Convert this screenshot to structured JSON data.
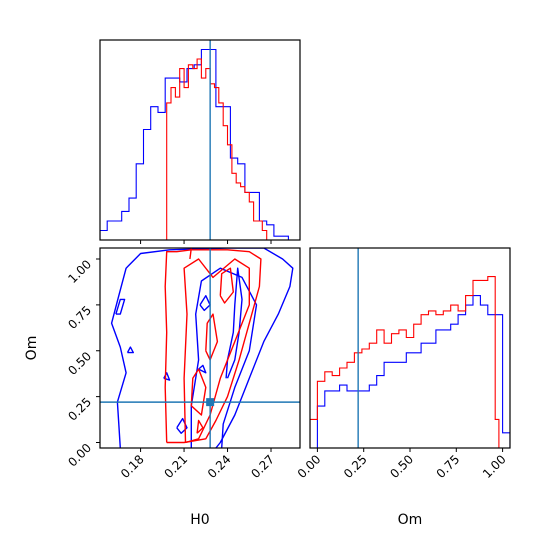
{
  "chart_data": {
    "type": "corner",
    "parameters": [
      "H0",
      "Om"
    ],
    "truth": {
      "H0": 0.228,
      "Om": 0.22
    },
    "colors": {
      "blue": "#0000ff",
      "red": "#ff0000",
      "truth": "#1f77b4"
    },
    "panels": [
      {
        "id": "hist-H0",
        "type": "histogram",
        "xlim": [
          0.152,
          0.29
        ],
        "ylim": [
          0,
          1.05
        ],
        "xticks": [
          0.18,
          0.21,
          0.24,
          0.27
        ],
        "tick_labels_shown": false,
        "series": [
          {
            "color": "blue",
            "edges": [
              0.152,
              0.157,
              0.162,
              0.167,
              0.172,
              0.177,
              0.182,
              0.187,
              0.192,
              0.197,
              0.202,
              0.207,
              0.212,
              0.217,
              0.222,
              0.227,
              0.232,
              0.237,
              0.242,
              0.247,
              0.252,
              0.257,
              0.262,
              0.267,
              0.272,
              0.277,
              0.282,
              0.287
            ],
            "values": [
              0.05,
              0.1,
              0.1,
              0.15,
              0.22,
              0.4,
              0.58,
              0.7,
              0.67,
              0.85,
              0.85,
              0.83,
              0.9,
              0.92,
              1.0,
              1.0,
              0.7,
              0.7,
              0.43,
              0.4,
              0.25,
              0.25,
              0.1,
              0.08,
              0.02,
              0.02,
              0.0
            ]
          },
          {
            "color": "red",
            "edges": [
              0.198,
              0.201,
              0.204,
              0.207,
              0.21,
              0.213,
              0.216,
              0.219,
              0.222,
              0.225,
              0.228,
              0.231,
              0.234,
              0.237,
              0.24,
              0.243,
              0.246,
              0.249,
              0.252,
              0.255,
              0.258,
              0.261,
              0.264,
              0.267
            ],
            "values": [
              0.72,
              0.8,
              0.75,
              0.9,
              0.8,
              0.92,
              0.9,
              0.95,
              0.85,
              0.9,
              0.82,
              0.8,
              0.72,
              0.6,
              0.5,
              0.35,
              0.3,
              0.28,
              0.25,
              0.2,
              0.1,
              0.1,
              0.05
            ]
          }
        ]
      },
      {
        "id": "contour-H0-Om",
        "type": "contour",
        "xlim": [
          0.152,
          0.29
        ],
        "ylim": [
          -0.03,
          1.06
        ],
        "xticks": [
          0.18,
          0.21,
          0.24,
          0.27
        ],
        "xtick_labels": [
          "0.18",
          "0.21",
          "0.24",
          "0.27"
        ],
        "yticks": [
          0.0,
          0.25,
          0.5,
          0.75,
          1.0
        ],
        "ytick_labels": [
          "0.00",
          "0.25",
          "0.50",
          "0.75",
          "1.00"
        ],
        "xlabel": "H0",
        "ylabel": "Om",
        "series": [
          {
            "color": "blue",
            "paths": [
              [
                [
                  0.166,
                  -0.03
                ],
                [
                  0.165,
                  0.1
                ],
                [
                  0.164,
                  0.22
                ],
                [
                  0.17,
                  0.38
                ],
                [
                  0.166,
                  0.52
                ],
                [
                  0.16,
                  0.65
                ],
                [
                  0.165,
                  0.8
                ],
                [
                  0.17,
                  0.95
                ],
                [
                  0.18,
                  1.03
                ],
                [
                  0.2,
                  1.05
                ],
                [
                  0.24,
                  1.06
                ],
                [
                  0.265,
                  1.06
                ],
                [
                  0.278,
                  1.0
                ],
                [
                  0.285,
                  0.95
                ],
                [
                  0.283,
                  0.85
                ],
                [
                  0.275,
                  0.7
                ],
                [
                  0.265,
                  0.55
                ],
                [
                  0.255,
                  0.35
                ],
                [
                  0.245,
                  0.15
                ],
                [
                  0.235,
                  0.0
                ],
                [
                  0.232,
                  -0.03
                ]
              ],
              [
                [
                  0.215,
                  -0.03
                ],
                [
                  0.215,
                  0.2
                ],
                [
                  0.22,
                  0.45
                ],
                [
                  0.218,
                  0.7
                ],
                [
                  0.222,
                  0.88
                ],
                [
                  0.235,
                  0.95
                ],
                [
                  0.25,
                  0.9
                ],
                [
                  0.26,
                  0.75
                ],
                [
                  0.255,
                  0.5
                ],
                [
                  0.245,
                  0.3
                ],
                [
                  0.237,
                  0.1
                ],
                [
                  0.236,
                  -0.03
                ]
              ],
              [
                [
                  0.239,
                  0.35
                ],
                [
                  0.24,
                  0.45
                ],
                [
                  0.244,
                  0.6
                ],
                [
                  0.245,
                  0.75
                ],
                [
                  0.247,
                  0.95
                ],
                [
                  0.25,
                  0.78
                ],
                [
                  0.248,
                  0.6
                ],
                [
                  0.245,
                  0.45
                ],
                [
                  0.24,
                  0.35
                ]
              ],
              [
                [
                  0.163,
                  0.7
                ],
                [
                  0.166,
                  0.78
                ],
                [
                  0.169,
                  0.78
                ],
                [
                  0.166,
                  0.7
                ],
                [
                  0.163,
                  0.7
                ]
              ],
              [
                [
                  0.171,
                  0.49
                ],
                [
                  0.173,
                  0.52
                ],
                [
                  0.175,
                  0.49
                ],
                [
                  0.171,
                  0.49
                ]
              ],
              [
                [
                  0.196,
                  0.35
                ],
                [
                  0.198,
                  0.38
                ],
                [
                  0.2,
                  0.34
                ],
                [
                  0.196,
                  0.35
                ]
              ],
              [
                [
                  0.205,
                  0.08
                ],
                [
                  0.209,
                  0.13
                ],
                [
                  0.212,
                  0.08
                ],
                [
                  0.208,
                  0.05
                ],
                [
                  0.205,
                  0.08
                ]
              ],
              [
                [
                  0.221,
                  0.75
                ],
                [
                  0.225,
                  0.8
                ],
                [
                  0.228,
                  0.75
                ],
                [
                  0.224,
                  0.72
                ],
                [
                  0.221,
                  0.75
                ]
              ],
              [
                [
                  0.22,
                  0.4
                ],
                [
                  0.223,
                  0.42
                ],
                [
                  0.225,
                  0.38
                ],
                [
                  0.22,
                  0.4
                ]
              ]
            ]
          },
          {
            "color": "red",
            "paths": [
              [
                [
                  0.198,
                  0.0
                ],
                [
                  0.197,
                  0.3
                ],
                [
                  0.198,
                  0.6
                ],
                [
                  0.197,
                  0.85
                ],
                [
                  0.198,
                  1.04
                ],
                [
                  0.205,
                  1.04
                ],
                [
                  0.215,
                  1.05
                ],
                [
                  0.225,
                  1.05
                ],
                [
                  0.24,
                  1.05
                ],
                [
                  0.255,
                  1.04
                ],
                [
                  0.263,
                  1.0
                ],
                [
                  0.262,
                  0.85
                ],
                [
                  0.255,
                  0.65
                ],
                [
                  0.248,
                  0.45
                ],
                [
                  0.24,
                  0.25
                ],
                [
                  0.232,
                  0.12
                ],
                [
                  0.225,
                  0.02
                ],
                [
                  0.21,
                  0.0
                ],
                [
                  0.198,
                  0.0
                ]
              ],
              [
                [
                  0.211,
                  0.0
                ],
                [
                  0.21,
                  0.35
                ],
                [
                  0.212,
                  0.7
                ],
                [
                  0.21,
                  0.95
                ],
                [
                  0.22,
                  1.0
                ],
                [
                  0.23,
                  0.9
                ],
                [
                  0.245,
                  1.0
                ],
                [
                  0.255,
                  0.95
                ],
                [
                  0.255,
                  0.75
                ],
                [
                  0.245,
                  0.55
                ],
                [
                  0.235,
                  0.35
                ],
                [
                  0.228,
                  0.15
                ],
                [
                  0.22,
                  0.02
                ],
                [
                  0.211,
                  0.0
                ]
              ],
              [
                [
                  0.215,
                  0.2
                ],
                [
                  0.216,
                  0.35
                ],
                [
                  0.22,
                  0.4
                ],
                [
                  0.225,
                  0.3
                ],
                [
                  0.222,
                  0.15
                ],
                [
                  0.215,
                  0.2
                ]
              ],
              [
                [
                  0.225,
                  0.5
                ],
                [
                  0.226,
                  0.65
                ],
                [
                  0.23,
                  0.7
                ],
                [
                  0.233,
                  0.55
                ],
                [
                  0.228,
                  0.45
                ],
                [
                  0.225,
                  0.5
                ]
              ],
              [
                [
                  0.235,
                  0.8
                ],
                [
                  0.236,
                  0.92
                ],
                [
                  0.242,
                  0.95
                ],
                [
                  0.244,
                  0.82
                ],
                [
                  0.238,
                  0.76
                ],
                [
                  0.235,
                  0.8
                ]
              ],
              [
                [
                  0.214,
                  1.0
                ],
                [
                  0.215,
                  1.06
                ]
              ],
              [
                [
                  0.219,
                  0.05
                ],
                [
                  0.22,
                  0.12
                ],
                [
                  0.223,
                  0.08
                ],
                [
                  0.219,
                  0.05
                ]
              ]
            ]
          }
        ],
        "truth_point": [
          0.228,
          0.22
        ]
      },
      {
        "id": "hist-Om",
        "type": "histogram",
        "xlim": [
          -0.04,
          1.04
        ],
        "ylim": [
          0,
          1.05
        ],
        "xticks": [
          0.0,
          0.25,
          0.5,
          0.75,
          1.0
        ],
        "xtick_labels": [
          "0.00",
          "0.25",
          "0.50",
          "0.75",
          "1.00"
        ],
        "xlabel": "Om",
        "series": [
          {
            "color": "blue",
            "edges": [
              -0.04,
              0.0,
              0.04,
              0.08,
              0.12,
              0.16,
              0.2,
              0.24,
              0.28,
              0.32,
              0.36,
              0.4,
              0.44,
              0.48,
              0.52,
              0.56,
              0.6,
              0.64,
              0.68,
              0.72,
              0.76,
              0.8,
              0.84,
              0.88,
              0.92,
              0.96,
              1.0,
              1.04
            ],
            "values": [
              0.0,
              0.22,
              0.3,
              0.3,
              0.33,
              0.3,
              0.3,
              0.3,
              0.33,
              0.38,
              0.45,
              0.45,
              0.45,
              0.5,
              0.5,
              0.55,
              0.55,
              0.62,
              0.62,
              0.65,
              0.7,
              0.75,
              0.8,
              0.75,
              0.7,
              0.7,
              0.08
            ]
          },
          {
            "color": "red",
            "edges": [
              -0.04,
              0.0,
              0.04,
              0.08,
              0.12,
              0.16,
              0.2,
              0.24,
              0.28,
              0.32,
              0.36,
              0.4,
              0.44,
              0.48,
              0.52,
              0.56,
              0.6,
              0.64,
              0.68,
              0.72,
              0.76,
              0.8,
              0.84,
              0.88,
              0.92,
              0.96,
              0.98
            ],
            "values": [
              0.15,
              0.35,
              0.4,
              0.38,
              0.42,
              0.45,
              0.5,
              0.52,
              0.55,
              0.62,
              0.55,
              0.6,
              0.62,
              0.58,
              0.65,
              0.7,
              0.72,
              0.7,
              0.72,
              0.75,
              0.72,
              0.8,
              0.88,
              0.88,
              0.9,
              0.15
            ]
          }
        ]
      }
    ]
  }
}
